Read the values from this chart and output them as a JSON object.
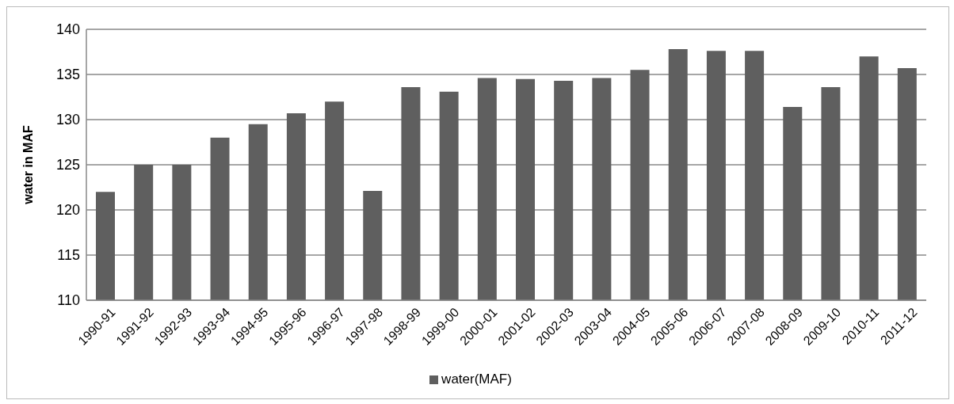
{
  "chart_data": {
    "type": "bar",
    "ylabel": "water in MAF",
    "categories": [
      "1990-91",
      "1991-92",
      "1992-93",
      "1993-94",
      "1994-95",
      "1995-96",
      "1996-97",
      "1997-98",
      "1998-99",
      "1999-00",
      "2000-01",
      "2001-02",
      "2002-03",
      "2003-04",
      "2004-05",
      "2005-06",
      "2006-07",
      "2007-08",
      "2008-09",
      "2009-10",
      "2010-11",
      "2011-12"
    ],
    "series": [
      {
        "name": "water(MAF)",
        "color": "#5f5f5f",
        "values": [
          122,
          125,
          125,
          128,
          129.5,
          130.7,
          132,
          122.1,
          133.6,
          133.1,
          134.6,
          134.5,
          134.3,
          134.6,
          135.5,
          137.8,
          137.6,
          137.6,
          131.4,
          133.6,
          137,
          135.7
        ]
      }
    ],
    "ylim": [
      110,
      140
    ],
    "yticks": [
      110,
      115,
      120,
      125,
      130,
      135,
      140
    ],
    "grid": "y",
    "legend": "bottom"
  }
}
